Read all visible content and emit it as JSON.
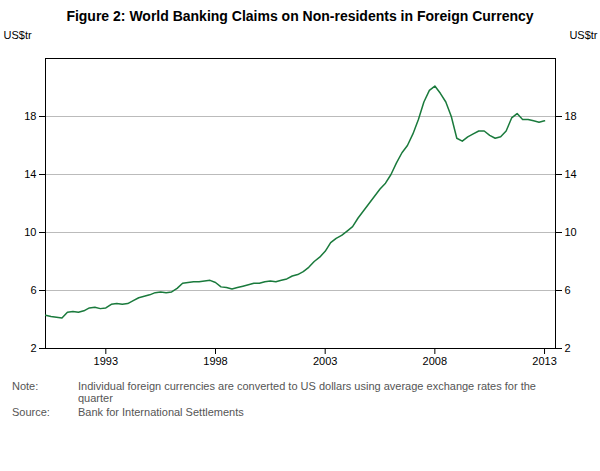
{
  "chart_data": {
    "type": "line",
    "title": "Figure 2: World Banking Claims on Non-residents in Foreign Currency",
    "ylabel": "US$tr",
    "y2label": "US$tr",
    "note_label": "Note:",
    "note": "Individual foreign currencies are converted to US dollars using average exchange rates for the\nquarter",
    "source_label": "Source:",
    "source": "Bank for International Settlements",
    "color": "#1a7a3c",
    "grid": "y",
    "xlim": [
      1990.25,
      2013.5
    ],
    "xticks": [
      1993,
      1998,
      2003,
      2008,
      2013
    ],
    "ylim": [
      2,
      22
    ],
    "yticks": [
      2,
      6,
      10,
      14,
      18
    ],
    "y2lim": [
      2,
      22
    ],
    "y2ticks": [
      2,
      6,
      10,
      14,
      18
    ],
    "x": [
      1990.25,
      1990.5,
      1990.75,
      1991.0,
      1991.25,
      1991.5,
      1991.75,
      1992.0,
      1992.25,
      1992.5,
      1992.75,
      1993.0,
      1993.25,
      1993.5,
      1993.75,
      1994.0,
      1994.25,
      1994.5,
      1994.75,
      1995.0,
      1995.25,
      1995.5,
      1995.75,
      1996.0,
      1996.25,
      1996.5,
      1996.75,
      1997.0,
      1997.25,
      1997.5,
      1997.75,
      1998.0,
      1998.25,
      1998.5,
      1998.75,
      1999.0,
      1999.25,
      1999.5,
      1999.75,
      2000.0,
      2000.25,
      2000.5,
      2000.75,
      2001.0,
      2001.25,
      2001.5,
      2001.75,
      2002.0,
      2002.25,
      2002.5,
      2002.75,
      2003.0,
      2003.25,
      2003.5,
      2003.75,
      2004.0,
      2004.25,
      2004.5,
      2004.75,
      2005.0,
      2005.25,
      2005.5,
      2005.75,
      2006.0,
      2006.25,
      2006.5,
      2006.75,
      2007.0,
      2007.25,
      2007.5,
      2007.75,
      2008.0,
      2008.25,
      2008.5,
      2008.75,
      2009.0,
      2009.25,
      2009.5,
      2009.75,
      2010.0,
      2010.25,
      2010.5,
      2010.75,
      2011.0,
      2011.25,
      2011.5,
      2011.75,
      2012.0,
      2012.25,
      2012.5,
      2012.75,
      2013.0
    ],
    "values": [
      4.3,
      4.2,
      4.15,
      4.1,
      4.5,
      4.55,
      4.5,
      4.6,
      4.8,
      4.85,
      4.75,
      4.8,
      5.05,
      5.1,
      5.05,
      5.1,
      5.3,
      5.5,
      5.6,
      5.7,
      5.85,
      5.9,
      5.85,
      5.9,
      6.15,
      6.5,
      6.55,
      6.6,
      6.6,
      6.65,
      6.7,
      6.55,
      6.25,
      6.2,
      6.1,
      6.2,
      6.3,
      6.4,
      6.5,
      6.5,
      6.6,
      6.65,
      6.6,
      6.7,
      6.8,
      7.0,
      7.1,
      7.3,
      7.6,
      8.0,
      8.3,
      8.7,
      9.3,
      9.6,
      9.8,
      10.1,
      10.4,
      11.0,
      11.5,
      12.0,
      12.5,
      13.0,
      13.4,
      14.0,
      14.8,
      15.5,
      16.0,
      16.8,
      17.8,
      19.0,
      19.8,
      20.1,
      19.6,
      19.0,
      18.0,
      16.5,
      16.3,
      16.6,
      16.8,
      17.0,
      17.0,
      16.7,
      16.5,
      16.6,
      17.0,
      17.9,
      18.2,
      17.8,
      17.8,
      17.7,
      17.6,
      17.7
    ]
  }
}
